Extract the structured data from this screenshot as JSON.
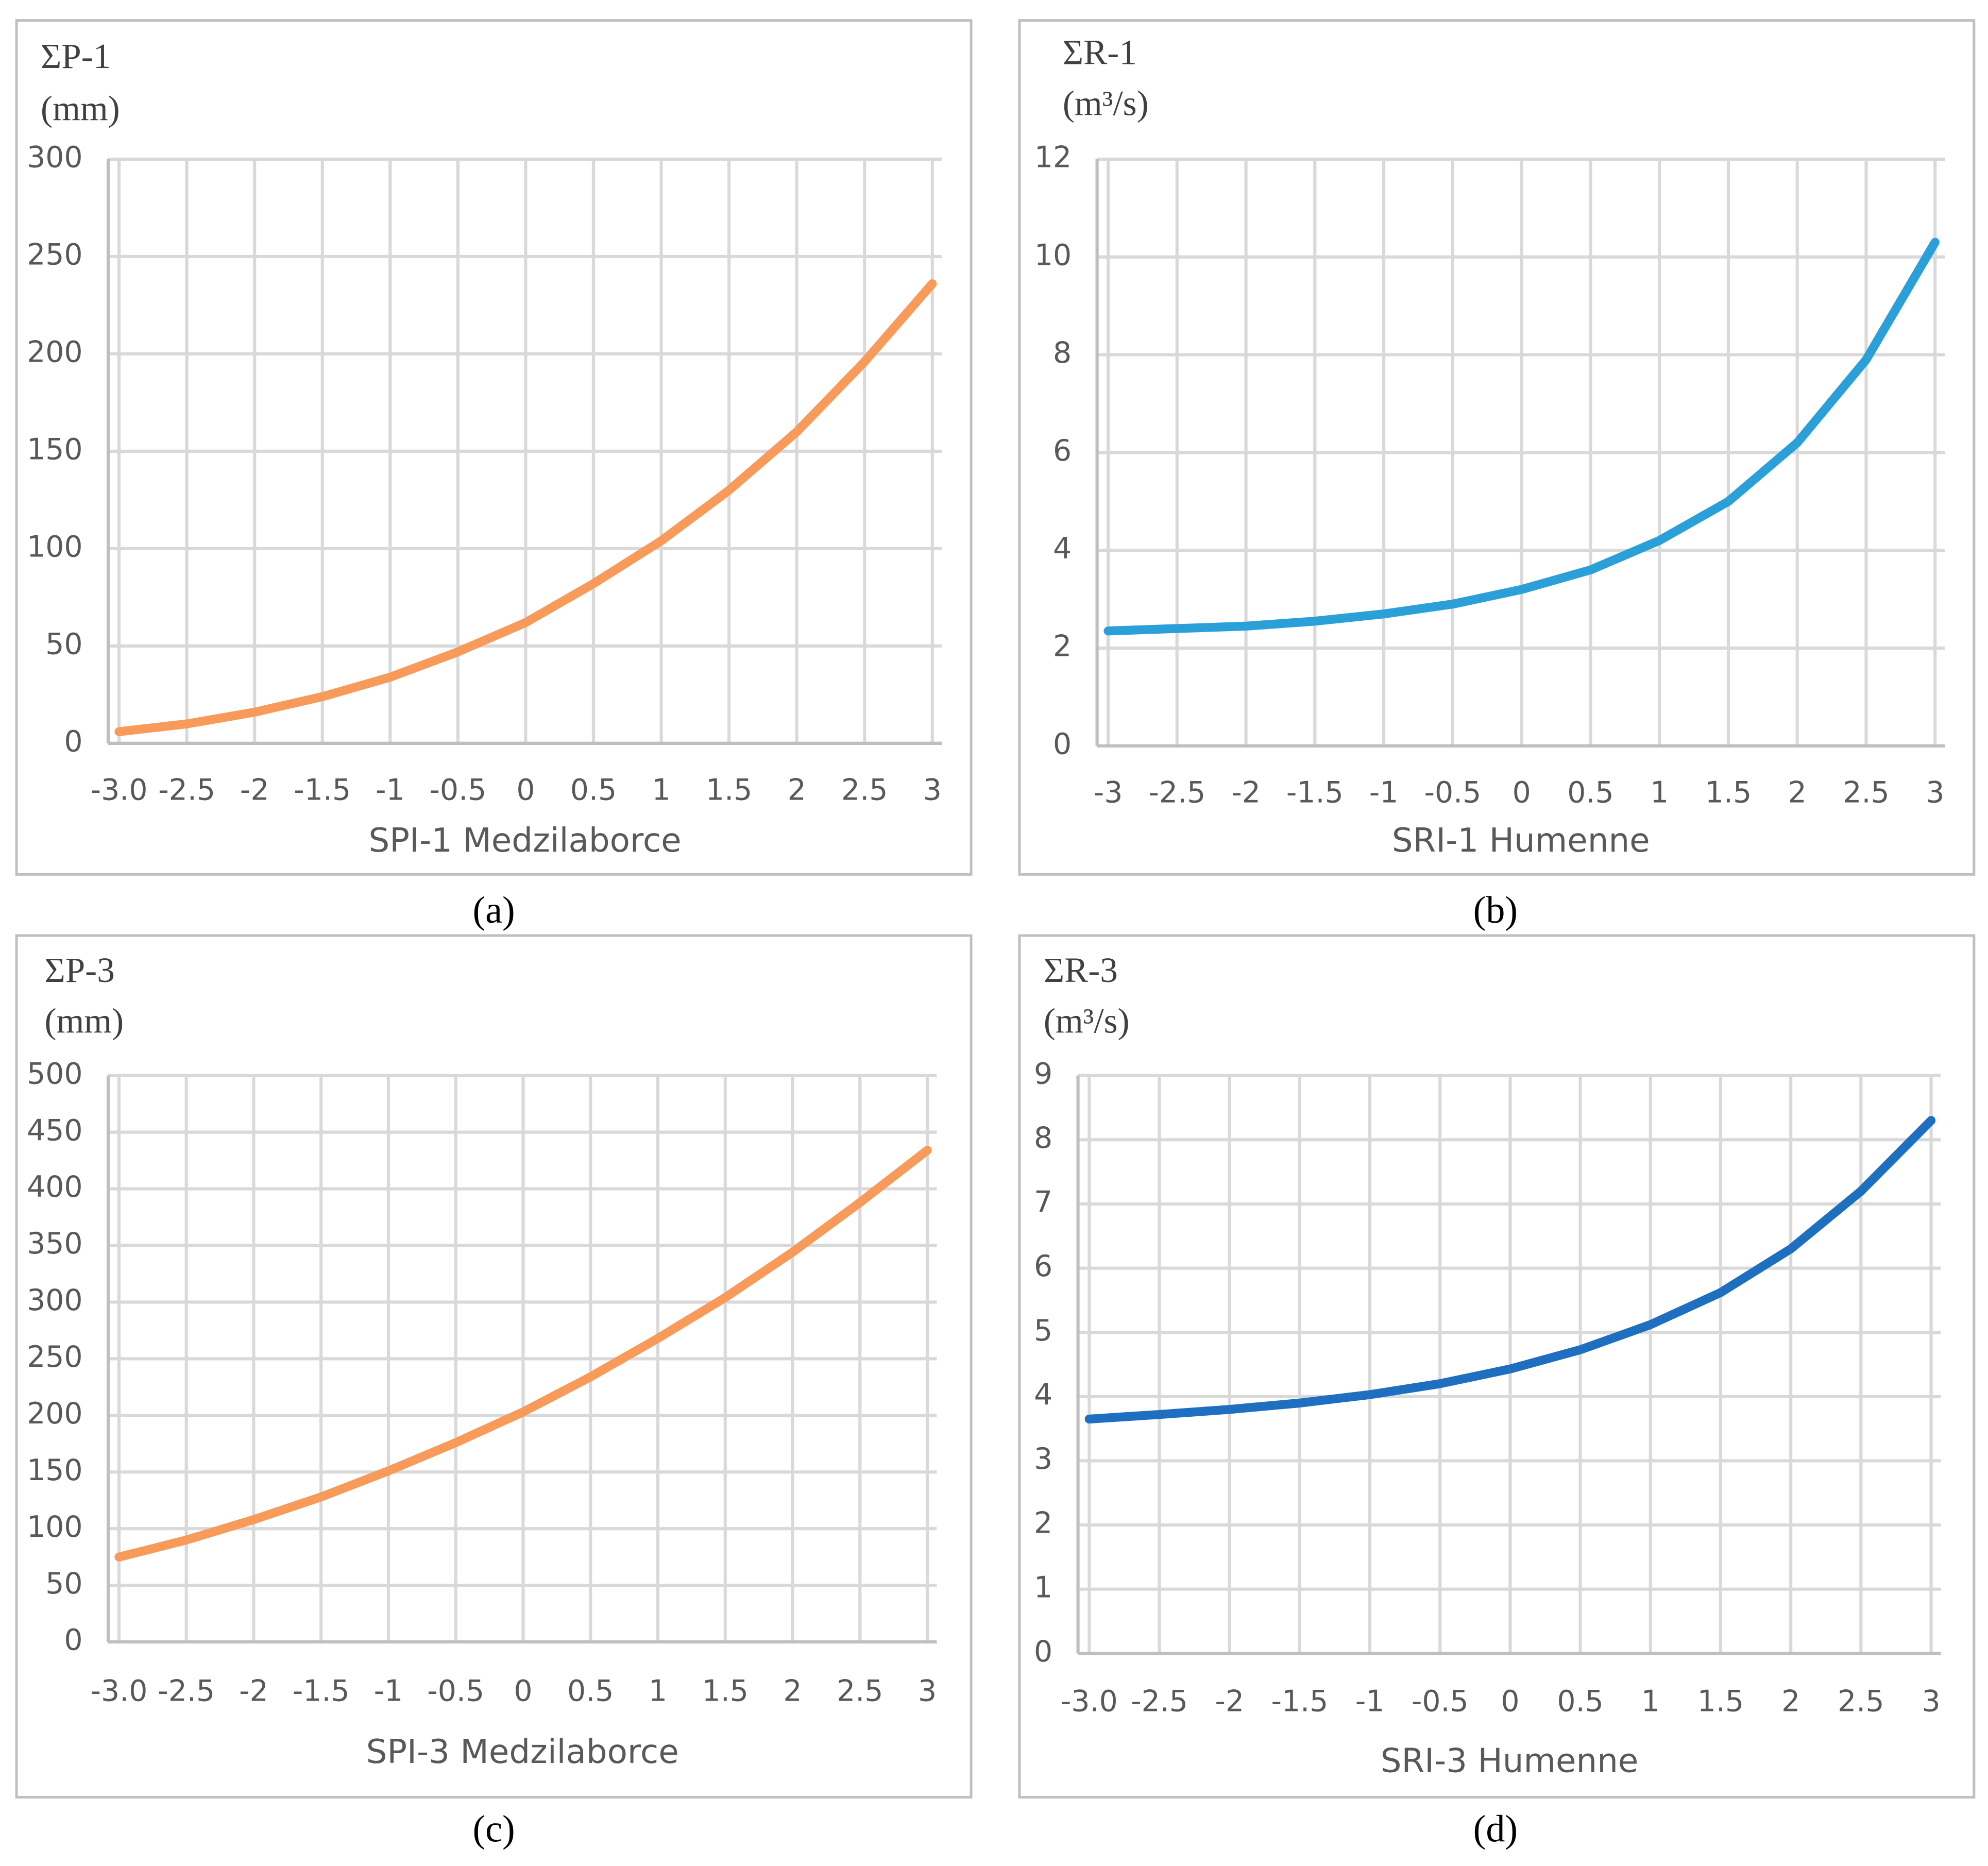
{
  "chart_data": [
    {
      "type": "line",
      "panel_label": "(a)",
      "y_label": [
        "ΣP-1",
        "(mm)"
      ],
      "x_label": "SPI-1 Medzilaborce",
      "x": [
        -3,
        -2.5,
        -2,
        -1.5,
        -1,
        -0.5,
        0,
        0.5,
        1,
        1.5,
        2,
        2.5,
        3
      ],
      "values": [
        6,
        10,
        16,
        24,
        34,
        47,
        62,
        82,
        104,
        130,
        160,
        196,
        236
      ],
      "color": "#f79a5a",
      "xlim": [
        -3.08,
        3.07
      ],
      "xticks": [
        {
          "value": -3,
          "label": "-3.0"
        },
        -2.5,
        -2,
        -1.5,
        -1,
        -0.5,
        0,
        0.5,
        1,
        1.5,
        2,
        2.5,
        3
      ],
      "ylim": [
        0,
        300
      ],
      "yticks": [
        0,
        50,
        100,
        150,
        200,
        250,
        300
      ],
      "grid": true
    },
    {
      "type": "line",
      "panel_label": "(b)",
      "y_label": [
        "ΣR-1",
        "(m³/s)"
      ],
      "x_label": "SRI-1 Humenne",
      "x": [
        -3,
        -2.5,
        -2,
        -1.5,
        -1,
        -0.5,
        0,
        0.5,
        1,
        1.5,
        2,
        2.5,
        3
      ],
      "values": [
        2.35,
        2.4,
        2.45,
        2.55,
        2.7,
        2.9,
        3.2,
        3.6,
        4.2,
        5.0,
        6.2,
        7.9,
        10.3
      ],
      "color": "#2ba0d8",
      "xlim": [
        -3.08,
        3.07
      ],
      "xticks": [
        -3,
        -2.5,
        -2,
        -1.5,
        -1,
        -0.5,
        0,
        0.5,
        1,
        1.5,
        2,
        2.5,
        3
      ],
      "ylim": [
        0,
        12
      ],
      "yticks": [
        0,
        2,
        4,
        6,
        8,
        10,
        12
      ],
      "grid": true
    },
    {
      "type": "line",
      "panel_label": "(c)",
      "y_label": [
        "ΣP-3",
        "(mm)"
      ],
      "x_label": "SPI-3 Medzilaborce",
      "x": [
        -3,
        -2.5,
        -2,
        -1.5,
        -1,
        -0.5,
        0,
        0.5,
        1,
        1.5,
        2,
        2.5,
        3
      ],
      "values": [
        75,
        90,
        108,
        128,
        151,
        176,
        203,
        234,
        268,
        304,
        344,
        388,
        434
      ],
      "color": "#f79a5a",
      "xlim": [
        -3.08,
        3.07
      ],
      "xticks": [
        {
          "value": -3,
          "label": "-3.0"
        },
        -2.5,
        -2,
        -1.5,
        -1,
        -0.5,
        0,
        0.5,
        1,
        1.5,
        2,
        2.5,
        3
      ],
      "ylim": [
        0,
        500
      ],
      "yticks": [
        0,
        50,
        100,
        150,
        200,
        250,
        300,
        350,
        400,
        450,
        500
      ],
      "grid": true
    },
    {
      "type": "line",
      "panel_label": "(d)",
      "y_label": [
        "ΣR-3",
        "(m³/s)"
      ],
      "x_label": "SRI-3 Humenne",
      "x": [
        -3,
        -2.5,
        -2,
        -1.5,
        -1,
        -0.5,
        0,
        0.5,
        1,
        1.5,
        2,
        2.5,
        3
      ],
      "values": [
        3.65,
        3.72,
        3.8,
        3.9,
        4.03,
        4.2,
        4.43,
        4.73,
        5.12,
        5.62,
        6.3,
        7.2,
        8.3
      ],
      "color": "#1f6fc0",
      "xlim": [
        -3.08,
        3.07
      ],
      "xticks": [
        {
          "value": -3,
          "label": "-3.0"
        },
        -2.5,
        -2,
        -1.5,
        -1,
        -0.5,
        0,
        0.5,
        1,
        1.5,
        2,
        2.5,
        3
      ],
      "ylim": [
        0,
        9
      ],
      "yticks": [
        0,
        1,
        2,
        3,
        4,
        5,
        6,
        7,
        8,
        9
      ],
      "grid": true
    }
  ]
}
